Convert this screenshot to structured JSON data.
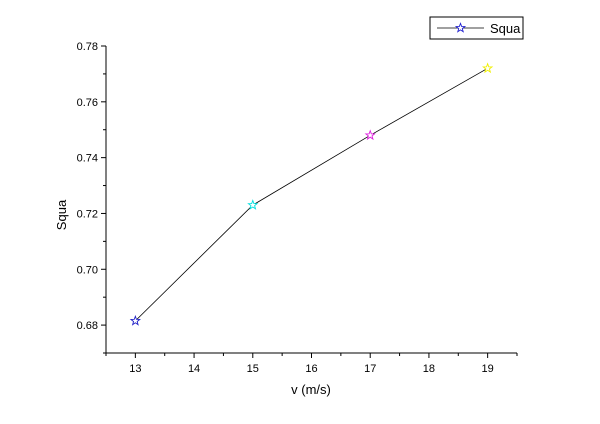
{
  "chart_data": {
    "type": "line",
    "xlabel": "v (m/s)",
    "ylabel": "Squa",
    "xlim": [
      12.5,
      19.5
    ],
    "ylim": [
      0.67,
      0.78
    ],
    "x_ticks": [
      "13",
      "14",
      "15",
      "16",
      "17",
      "18",
      "19"
    ],
    "x_tick_values": [
      13,
      14,
      15,
      16,
      17,
      18,
      19
    ],
    "y_ticks": [
      "0.68",
      "0.70",
      "0.72",
      "0.74",
      "0.76",
      "0.78"
    ],
    "y_tick_values": [
      0.68,
      0.7,
      0.72,
      0.74,
      0.76,
      0.78
    ],
    "grid": false,
    "legend_position": "top-right",
    "series": [
      {
        "name": "Squa",
        "x": [
          13,
          15,
          17,
          19
        ],
        "y": [
          0.6815,
          0.723,
          0.748,
          0.772
        ],
        "line_color": "#000000",
        "marker": "star",
        "legend_marker_color": "#1f1fd0",
        "marker_colors": [
          "#2020c8",
          "#00e0e0",
          "#e020e0",
          "#f0f000"
        ]
      }
    ]
  }
}
